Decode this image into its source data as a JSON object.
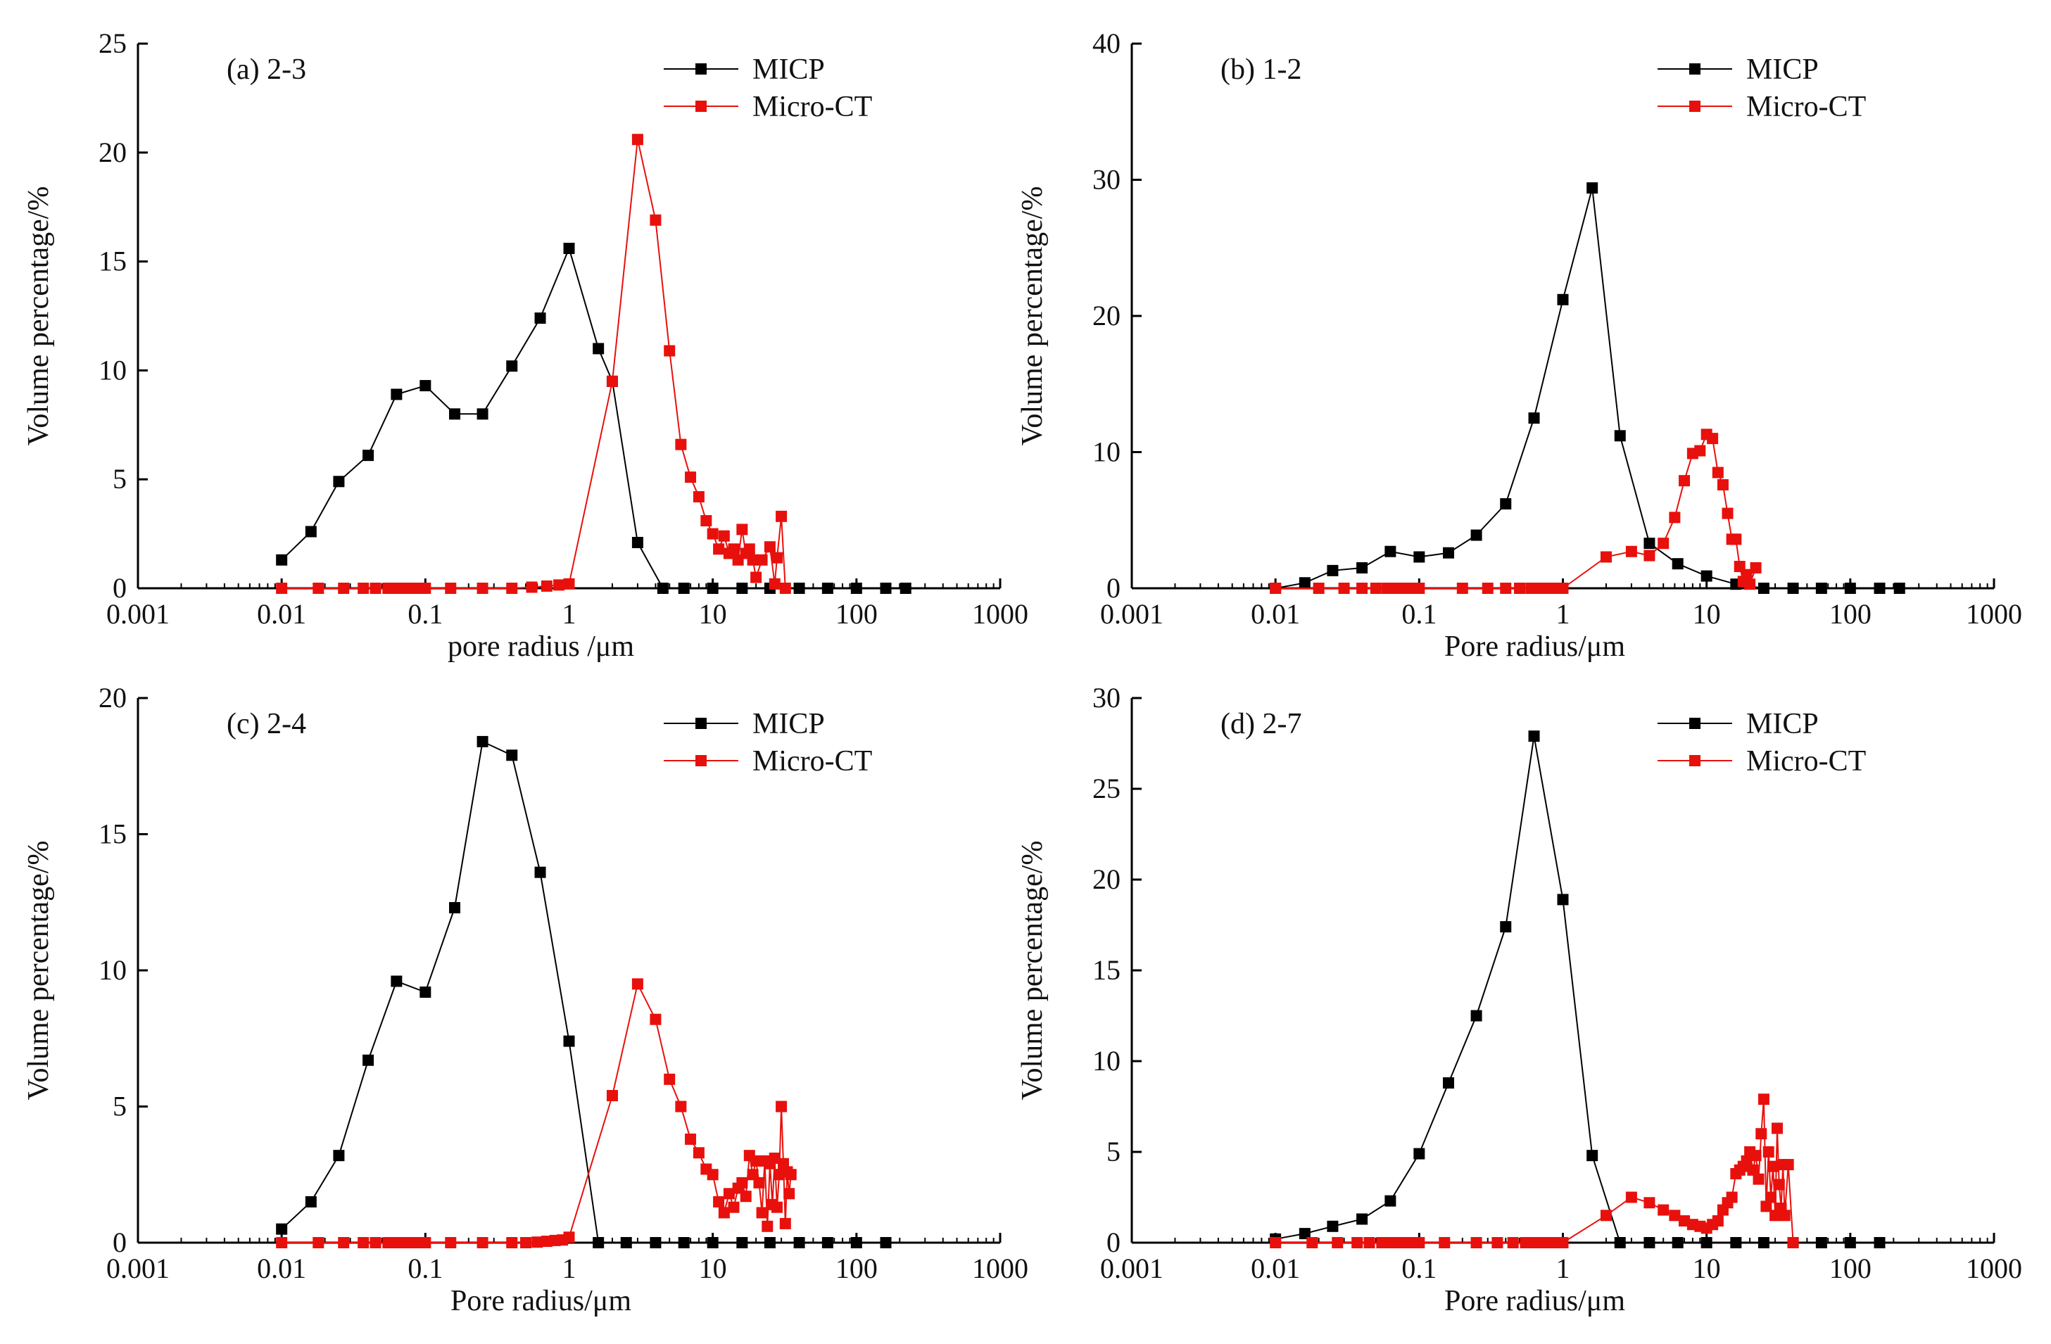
{
  "colors": {
    "micp": "#000000",
    "microct": "#e8100c",
    "axis": "#000000"
  },
  "chart_data": [
    {
      "type": "line",
      "panel_label": "(a) 2-3",
      "xlabel": "pore radius /μm",
      "ylabel": "Volume percentage/%",
      "x_scale": "log",
      "xlim": [
        0.001,
        1000
      ],
      "ylim": [
        0,
        25
      ],
      "x_ticks": [
        "0.001",
        "0.01",
        "0.1",
        "1",
        "10",
        "100",
        "1000"
      ],
      "y_ticks": [
        "0",
        "5",
        "10",
        "15",
        "20",
        "25"
      ],
      "legend_position": "top-right",
      "series": [
        {
          "name": "MICP",
          "color": "#000000",
          "x": [
            0.01,
            0.016,
            0.025,
            0.04,
            0.063,
            0.1,
            0.16,
            0.25,
            0.4,
            0.63,
            1,
            1.6,
            2,
            3,
            4.5,
            6.3,
            10,
            16,
            25,
            40,
            63,
            100,
            160,
            220
          ],
          "y": [
            1.3,
            2.6,
            4.9,
            6.1,
            8.9,
            9.3,
            8.0,
            8.0,
            10.2,
            12.4,
            15.6,
            11.0,
            9.5,
            2.1,
            0,
            0,
            0,
            0,
            0,
            0,
            0,
            0,
            0,
            0
          ]
        },
        {
          "name": "Micro-CT",
          "color": "#e8100c",
          "x": [
            0.01,
            0.018,
            0.027,
            0.037,
            0.045,
            0.055,
            0.065,
            0.075,
            0.085,
            0.1,
            0.15,
            0.25,
            0.4,
            0.55,
            0.7,
            0.85,
            1.0,
            2.0,
            3.0,
            4.0,
            5.0,
            6.0,
            7.0,
            8.0,
            9.0,
            10.0,
            11.0,
            12.0,
            13.0,
            14.0,
            15.0,
            16.0,
            17.0,
            18.0,
            19.0,
            20.0,
            22.0,
            25.0,
            27.0,
            28.0,
            30.0,
            32.0
          ],
          "y": [
            0,
            0,
            0,
            0,
            0,
            0,
            0,
            0,
            0,
            0,
            0,
            0,
            0,
            0.05,
            0.1,
            0.15,
            0.2,
            9.5,
            20.6,
            16.9,
            10.9,
            6.6,
            5.1,
            4.2,
            3.1,
            2.5,
            1.8,
            2.4,
            1.6,
            1.8,
            1.3,
            2.7,
            1.6,
            1.8,
            1.3,
            0.5,
            1.3,
            1.9,
            0.2,
            1.4,
            3.3,
            0
          ]
        }
      ]
    },
    {
      "type": "line",
      "panel_label": "(b) 1-2",
      "xlabel": "Pore radius/μm",
      "ylabel": "Volume percentage/%",
      "x_scale": "log",
      "xlim": [
        0.001,
        1000
      ],
      "ylim": [
        0,
        40
      ],
      "x_ticks": [
        "0.001",
        "0.01",
        "0.1",
        "1",
        "10",
        "100",
        "1000"
      ],
      "y_ticks": [
        "0",
        "10",
        "20",
        "30",
        "40"
      ],
      "legend_position": "top-right",
      "series": [
        {
          "name": "MICP",
          "color": "#000000",
          "x": [
            0.01,
            0.016,
            0.025,
            0.04,
            0.063,
            0.1,
            0.16,
            0.25,
            0.4,
            0.63,
            1,
            1.6,
            2.5,
            4,
            6.3,
            10,
            16,
            25,
            40,
            63,
            100,
            160,
            220
          ],
          "y": [
            0,
            0.4,
            1.3,
            1.5,
            2.7,
            2.3,
            2.6,
            3.9,
            6.2,
            12.5,
            21.2,
            29.4,
            11.2,
            3.3,
            1.8,
            0.9,
            0.3,
            0,
            0,
            0,
            0,
            0,
            0
          ]
        },
        {
          "name": "Micro-CT",
          "color": "#e8100c",
          "x": [
            0.01,
            0.02,
            0.03,
            0.04,
            0.05,
            0.06,
            0.07,
            0.08,
            0.09,
            0.1,
            0.2,
            0.3,
            0.4,
            0.5,
            0.6,
            0.7,
            0.8,
            0.9,
            1.0,
            2.0,
            3.0,
            4.0,
            5.0,
            6.0,
            7.0,
            8.0,
            9.0,
            10.0,
            11.0,
            12.0,
            13.0,
            14.0,
            15.0,
            16.0,
            17.0,
            18.0,
            19.0,
            20.0,
            22.0
          ],
          "y": [
            0,
            0,
            0,
            0,
            0,
            0,
            0,
            0,
            0,
            0,
            0,
            0,
            0,
            0,
            0,
            0,
            0,
            0,
            0,
            2.3,
            2.7,
            2.4,
            3.3,
            5.2,
            7.9,
            9.9,
            10.1,
            11.3,
            11.0,
            8.5,
            7.6,
            5.5,
            3.6,
            3.6,
            1.6,
            0.5,
            1.0,
            0.3,
            1.5
          ]
        }
      ]
    },
    {
      "type": "line",
      "panel_label": "(c) 2-4",
      "xlabel": "Pore radius/μm",
      "ylabel": "Volume percentage/%",
      "x_scale": "log",
      "xlim": [
        0.001,
        1000
      ],
      "ylim": [
        0,
        20
      ],
      "x_ticks": [
        "0.001",
        "0.01",
        "0.1",
        "1",
        "10",
        "100",
        "1000"
      ],
      "y_ticks": [
        "0",
        "5",
        "10",
        "15",
        "20"
      ],
      "legend_position": "top-right",
      "series": [
        {
          "name": "MICP",
          "color": "#000000",
          "x": [
            0.01,
            0.016,
            0.025,
            0.04,
            0.063,
            0.1,
            0.16,
            0.25,
            0.4,
            0.63,
            1,
            1.6,
            2.5,
            4,
            6.3,
            10,
            16,
            25,
            40,
            63,
            100,
            160
          ],
          "y": [
            0.5,
            1.5,
            3.2,
            6.7,
            9.6,
            9.2,
            12.3,
            18.4,
            17.9,
            13.6,
            7.4,
            0,
            0,
            0,
            0,
            0,
            0,
            0,
            0,
            0,
            0,
            0
          ]
        },
        {
          "name": "Micro-CT",
          "color": "#e8100c",
          "x": [
            0.01,
            0.018,
            0.027,
            0.037,
            0.045,
            0.055,
            0.065,
            0.075,
            0.085,
            0.1,
            0.15,
            0.25,
            0.4,
            0.5,
            0.6,
            0.7,
            0.8,
            0.9,
            1.0,
            2.0,
            3.0,
            4.0,
            5.0,
            6.0,
            7.0,
            8.0,
            9.0,
            10.0,
            11.0,
            12.0,
            13.0,
            14.0,
            15.0,
            16.0,
            17.0,
            18.0,
            19.0,
            20.0,
            21.0,
            22.0,
            23.0,
            24.0,
            25.0,
            26.0,
            27.0,
            28.0,
            29.0,
            30.0,
            31.0,
            32.0,
            33.0,
            34.0,
            35.0
          ],
          "y": [
            0,
            0,
            0,
            0,
            0,
            0,
            0,
            0,
            0,
            0,
            0,
            0,
            0,
            0,
            0.02,
            0.05,
            0.08,
            0.1,
            0.2,
            5.4,
            9.5,
            8.2,
            6.0,
            5.0,
            3.8,
            3.3,
            2.7,
            2.5,
            1.5,
            1.1,
            1.8,
            1.3,
            2.0,
            2.2,
            1.7,
            3.2,
            2.5,
            3.0,
            2.2,
            1.1,
            3.0,
            0.6,
            2.9,
            1.4,
            3.1,
            1.3,
            2.5,
            5.0,
            2.9,
            0.7,
            2.6,
            1.8,
            2.5
          ]
        }
      ]
    },
    {
      "type": "line",
      "panel_label": "(d) 2-7",
      "xlabel": "Pore radius/μm",
      "ylabel": "Volume percentage/%",
      "x_scale": "log",
      "xlim": [
        0.001,
        1000
      ],
      "ylim": [
        0,
        30
      ],
      "x_ticks": [
        "0.001",
        "0.01",
        "0.1",
        "1",
        "10",
        "100",
        "1000"
      ],
      "y_ticks": [
        "0",
        "5",
        "10",
        "15",
        "20",
        "25",
        "30"
      ],
      "legend_position": "top-right",
      "series": [
        {
          "name": "MICP",
          "color": "#000000",
          "x": [
            0.01,
            0.016,
            0.025,
            0.04,
            0.063,
            0.1,
            0.16,
            0.25,
            0.4,
            0.63,
            1,
            1.6,
            2.5,
            4,
            6.3,
            10,
            16,
            25,
            40,
            63,
            100,
            160
          ],
          "y": [
            0.2,
            0.5,
            0.9,
            1.3,
            2.3,
            4.9,
            8.8,
            12.5,
            17.4,
            27.9,
            18.9,
            4.8,
            0,
            0,
            0,
            0,
            0,
            0,
            0,
            0,
            0,
            0
          ]
        },
        {
          "name": "Micro-CT",
          "color": "#e8100c",
          "x": [
            0.01,
            0.018,
            0.027,
            0.037,
            0.045,
            0.055,
            0.065,
            0.075,
            0.085,
            0.1,
            0.15,
            0.25,
            0.35,
            0.45,
            0.55,
            0.65,
            0.75,
            0.85,
            1.0,
            2.0,
            3.0,
            4.0,
            5.0,
            6.0,
            7.0,
            8.0,
            9.0,
            10.0,
            11.0,
            12.0,
            13.0,
            14.0,
            15.0,
            16.0,
            17.0,
            18.0,
            19.0,
            20.0,
            21.0,
            22.0,
            23.0,
            24.0,
            25.0,
            26.0,
            27.0,
            28.0,
            29.0,
            30.0,
            31.0,
            32.0,
            33.0,
            34.0,
            35.0,
            37.0,
            40.0
          ],
          "y": [
            0,
            0,
            0,
            0,
            0,
            0,
            0,
            0,
            0,
            0,
            0,
            0,
            0,
            0,
            0,
            0,
            0,
            0,
            0,
            1.5,
            2.5,
            2.2,
            1.8,
            1.5,
            1.2,
            1.0,
            0.9,
            0.8,
            1.0,
            1.2,
            1.8,
            2.2,
            2.5,
            3.8,
            4.0,
            4.2,
            4.5,
            5.0,
            4.0,
            4.8,
            3.5,
            6.0,
            7.9,
            2.0,
            5.0,
            2.5,
            4.2,
            1.5,
            6.3,
            3.2,
            1.9,
            4.3,
            1.5,
            4.3,
            0
          ]
        }
      ]
    }
  ]
}
